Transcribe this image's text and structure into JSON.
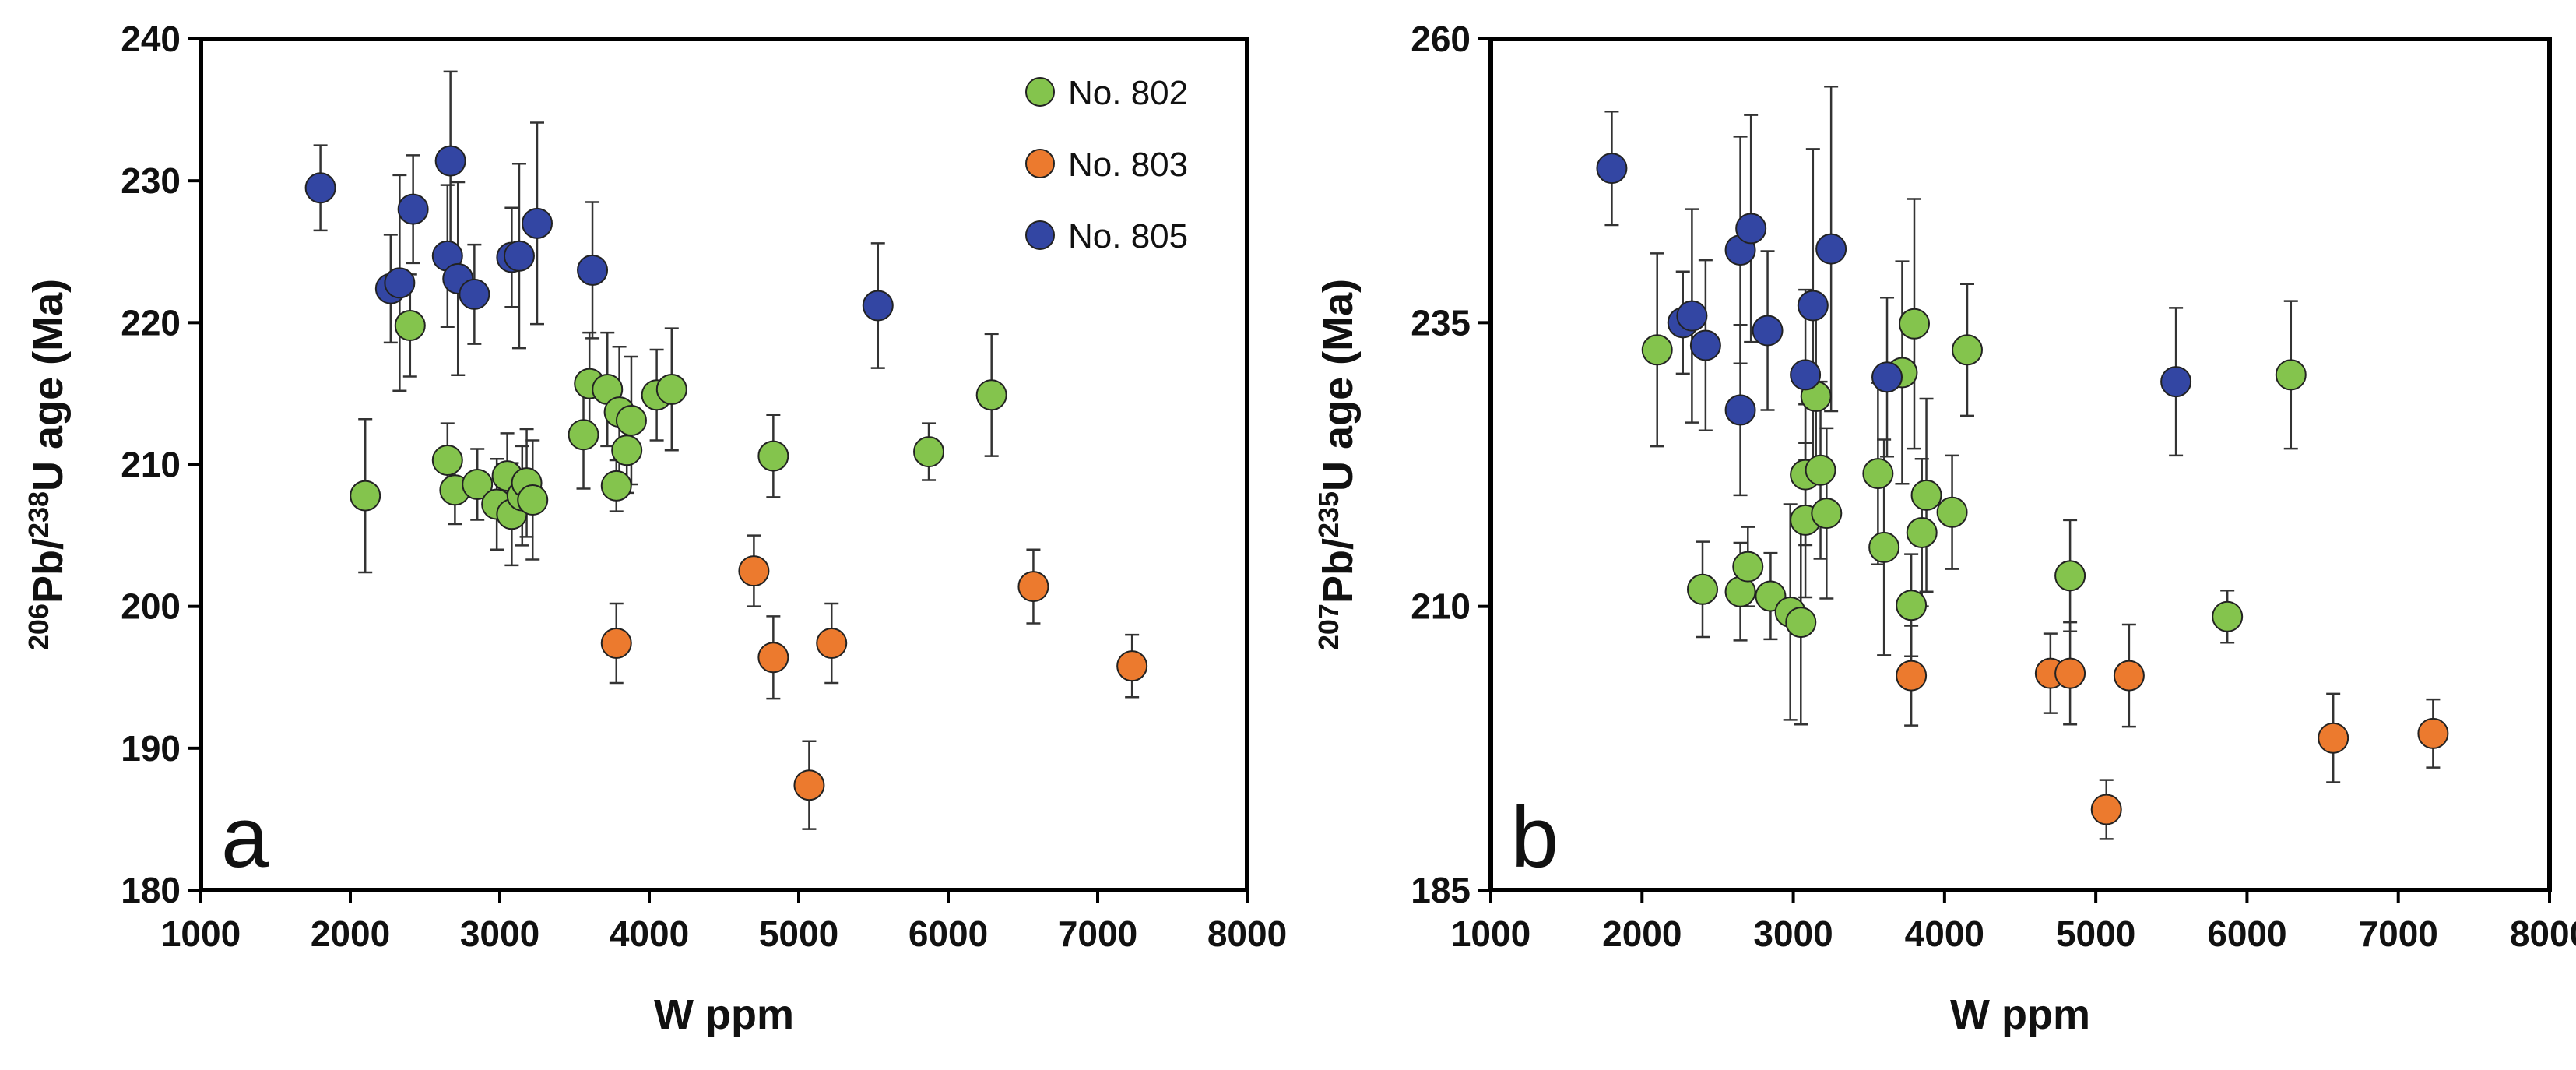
{
  "legend": [
    {
      "label": "No. 802",
      "color": "#84c44d"
    },
    {
      "label": "No. 803",
      "color": "#ec7a2e"
    },
    {
      "label": "No. 805",
      "color": "#3346a3"
    }
  ],
  "chart_data": [
    {
      "type": "scatter",
      "panel_label": "a",
      "xlabel": "W ppm",
      "ylabel": {
        "pre": "206",
        "mid1": "Pb/",
        "sup2": "238",
        "mid2": "U age (Ma)"
      },
      "xlim": [
        1000,
        8000
      ],
      "ylim": [
        180,
        240
      ],
      "xticks": [
        1000,
        2000,
        3000,
        4000,
        5000,
        6000,
        7000,
        8000
      ],
      "yticks": [
        180,
        190,
        200,
        210,
        220,
        230,
        240
      ],
      "legend_position": "top-right",
      "series": [
        {
          "name": "No. 802",
          "color": "#84c44d",
          "points": [
            [
              2100,
              207.8,
              5.4
            ],
            [
              2400,
              219.8,
              3.6
            ],
            [
              2650,
              210.3,
              2.6
            ],
            [
              2700,
              208.2,
              2.4
            ],
            [
              2850,
              208.6,
              2.5
            ],
            [
              2980,
              207.2,
              3.2
            ],
            [
              3050,
              209.2,
              3.0
            ],
            [
              3080,
              206.5,
              3.6
            ],
            [
              3150,
              207.8,
              3.5
            ],
            [
              3180,
              208.7,
              3.8
            ],
            [
              3220,
              207.5,
              4.2
            ],
            [
              3560,
              212.1,
              3.8
            ],
            [
              3600,
              215.7,
              3.6
            ],
            [
              3720,
              215.3,
              4.0
            ],
            [
              3800,
              213.7,
              4.6
            ],
            [
              3850,
              211.0,
              3.0
            ],
            [
              3880,
              213.1,
              4.5
            ],
            [
              3780,
              208.5,
              1.8
            ],
            [
              4050,
              214.9,
              3.2
            ],
            [
              4150,
              215.3,
              4.3
            ],
            [
              4830,
              210.6,
              2.9
            ],
            [
              5870,
              210.9,
              2.0
            ],
            [
              6290,
              214.9,
              4.3
            ]
          ]
        },
        {
          "name": "No. 803",
          "color": "#ec7a2e",
          "points": [
            [
              3780,
              197.4,
              2.8
            ],
            [
              4700,
              202.5,
              2.5
            ],
            [
              4830,
              196.4,
              2.9
            ],
            [
              5070,
              187.4,
              3.1
            ],
            [
              5220,
              197.4,
              2.8
            ],
            [
              6570,
              201.4,
              2.6
            ],
            [
              7230,
              195.8,
              2.2
            ]
          ]
        },
        {
          "name": "No. 805",
          "color": "#3346a3",
          "points": [
            [
              1800,
              229.5,
              3.0
            ],
            [
              2270,
              222.4,
              3.8
            ],
            [
              2330,
              222.8,
              7.6
            ],
            [
              2420,
              228.0,
              3.8
            ],
            [
              2650,
              224.7,
              5.0
            ],
            [
              2670,
              231.4,
              6.3
            ],
            [
              2720,
              223.1,
              6.8
            ],
            [
              2830,
              222.0,
              3.5
            ],
            [
              3080,
              224.6,
              3.5
            ],
            [
              3130,
              224.7,
              6.5
            ],
            [
              3250,
              227.0,
              7.1
            ],
            [
              3620,
              223.7,
              4.8
            ],
            [
              5530,
              221.2,
              4.4
            ]
          ]
        }
      ]
    },
    {
      "type": "scatter",
      "panel_label": "b",
      "xlabel": "W ppm",
      "ylabel": {
        "pre": "207",
        "mid1": "Pb/",
        "sup2": "235",
        "mid2": "U age (Ma)"
      },
      "xlim": [
        1000,
        8000
      ],
      "ylim": [
        185,
        260
      ],
      "xticks": [
        1000,
        2000,
        3000,
        4000,
        5000,
        6000,
        7000,
        8000
      ],
      "yticks": [
        185,
        210,
        235,
        260
      ],
      "legend_position": "none",
      "series": [
        {
          "name": "No. 802",
          "color": "#84c44d",
          "points": [
            [
              2100,
              232.6,
              8.5
            ],
            [
              2400,
              211.5,
              4.2
            ],
            [
              2650,
              211.3,
              4.3
            ],
            [
              2700,
              213.5,
              3.5
            ],
            [
              2850,
              210.9,
              3.8
            ],
            [
              2980,
              209.5,
              9.5
            ],
            [
              3050,
              208.6,
              9.0
            ],
            [
              3080,
              217.6,
              6.8
            ],
            [
              3080,
              221.6,
              6.2
            ],
            [
              3150,
              228.5,
              7.5
            ],
            [
              3180,
              222.0,
              7.8
            ],
            [
              3220,
              218.2,
              7.5
            ],
            [
              3560,
              221.7,
              8.0
            ],
            [
              3600,
              215.2,
              9.5
            ],
            [
              3720,
              230.6,
              9.8
            ],
            [
              3780,
              210.1,
              4.5
            ],
            [
              3800,
              234.9,
              11.0
            ],
            [
              3850,
              216.5,
              6.5
            ],
            [
              3880,
              219.8,
              8.5
            ],
            [
              4050,
              218.3,
              5.0
            ],
            [
              4150,
              232.6,
              5.8
            ],
            [
              4830,
              212.7,
              4.9
            ],
            [
              5870,
              209.1,
              2.3
            ],
            [
              6290,
              230.4,
              6.5
            ]
          ]
        },
        {
          "name": "No. 803",
          "color": "#ec7a2e",
          "points": [
            [
              3780,
              203.9,
              4.4
            ],
            [
              4700,
              204.1,
              3.5
            ],
            [
              4830,
              204.1,
              4.5
            ],
            [
              5070,
              192.1,
              2.6
            ],
            [
              5220,
              203.9,
              4.5
            ],
            [
              6570,
              198.4,
              3.9
            ],
            [
              7230,
              198.8,
              3.0
            ]
          ]
        },
        {
          "name": "No. 805",
          "color": "#3346a3",
          "points": [
            [
              1800,
              248.6,
              5.0
            ],
            [
              2270,
              235.0,
              4.5
            ],
            [
              2330,
              235.6,
              9.4
            ],
            [
              2420,
              233.0,
              7.5
            ],
            [
              2650,
              227.3,
              7.5
            ],
            [
              2650,
              241.4,
              10.0
            ],
            [
              2720,
              243.3,
              10.0
            ],
            [
              2830,
              234.3,
              7.0
            ],
            [
              3080,
              230.4,
              7.5
            ],
            [
              3130,
              236.5,
              13.8
            ],
            [
              3250,
              241.5,
              14.3
            ],
            [
              3620,
              230.2,
              7.0
            ],
            [
              5530,
              229.8,
              6.5
            ]
          ]
        }
      ]
    }
  ]
}
